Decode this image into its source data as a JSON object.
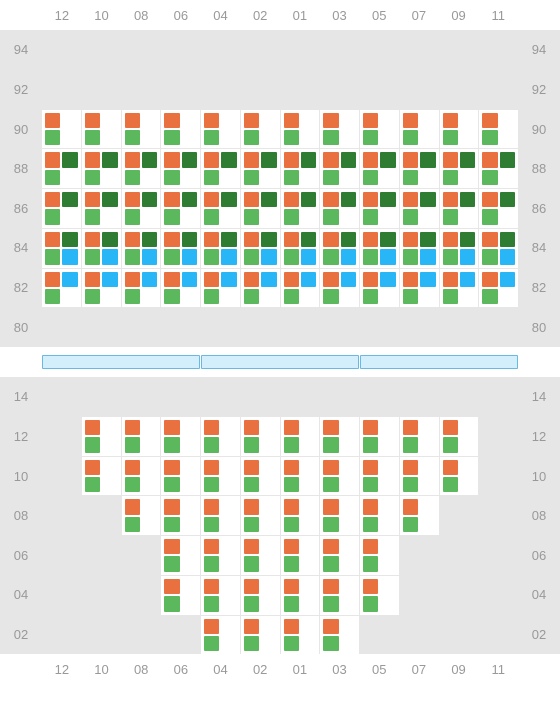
{
  "colors": {
    "orange": "#e8713f",
    "green": "#5cb85c",
    "darkgreen": "#2e7d32",
    "blue": "#29b6f6",
    "none": "transparent",
    "grey_bg": "#e6e6e6",
    "white_bg": "#ffffff",
    "label": "#999999",
    "sep_fill": "#d4effc",
    "sep_border": "#6bb8e0"
  },
  "columns": [
    "12",
    "10",
    "08",
    "06",
    "04",
    "02",
    "01",
    "03",
    "05",
    "07",
    "09",
    "11"
  ],
  "top_section": {
    "row_labels": [
      "94",
      "92",
      "90",
      "88",
      "86",
      "84",
      "82",
      "80"
    ],
    "cells": [
      [
        null,
        null,
        null,
        null,
        null,
        null,
        null,
        null,
        null,
        null,
        null,
        null
      ],
      [
        null,
        null,
        null,
        null,
        null,
        null,
        null,
        null,
        null,
        null,
        null,
        null
      ],
      [
        [
          "orange",
          "none",
          "green",
          "none"
        ],
        [
          "orange",
          "none",
          "green",
          "none"
        ],
        [
          "orange",
          "none",
          "green",
          "none"
        ],
        [
          "orange",
          "none",
          "green",
          "none"
        ],
        [
          "orange",
          "none",
          "green",
          "none"
        ],
        [
          "orange",
          "none",
          "green",
          "none"
        ],
        [
          "orange",
          "none",
          "green",
          "none"
        ],
        [
          "orange",
          "none",
          "green",
          "none"
        ],
        [
          "orange",
          "none",
          "green",
          "none"
        ],
        [
          "orange",
          "none",
          "green",
          "none"
        ],
        [
          "orange",
          "none",
          "green",
          "none"
        ],
        [
          "orange",
          "none",
          "green",
          "none"
        ]
      ],
      [
        [
          "orange",
          "darkgreen",
          "green",
          "none"
        ],
        [
          "orange",
          "darkgreen",
          "green",
          "none"
        ],
        [
          "orange",
          "darkgreen",
          "green",
          "none"
        ],
        [
          "orange",
          "darkgreen",
          "green",
          "none"
        ],
        [
          "orange",
          "darkgreen",
          "green",
          "none"
        ],
        [
          "orange",
          "darkgreen",
          "green",
          "none"
        ],
        [
          "orange",
          "darkgreen",
          "green",
          "none"
        ],
        [
          "orange",
          "darkgreen",
          "green",
          "none"
        ],
        [
          "orange",
          "darkgreen",
          "green",
          "none"
        ],
        [
          "orange",
          "darkgreen",
          "green",
          "none"
        ],
        [
          "orange",
          "darkgreen",
          "green",
          "none"
        ],
        [
          "orange",
          "darkgreen",
          "green",
          "none"
        ]
      ],
      [
        [
          "orange",
          "darkgreen",
          "green",
          "none"
        ],
        [
          "orange",
          "darkgreen",
          "green",
          "none"
        ],
        [
          "orange",
          "darkgreen",
          "green",
          "none"
        ],
        [
          "orange",
          "darkgreen",
          "green",
          "none"
        ],
        [
          "orange",
          "darkgreen",
          "green",
          "none"
        ],
        [
          "orange",
          "darkgreen",
          "green",
          "none"
        ],
        [
          "orange",
          "darkgreen",
          "green",
          "none"
        ],
        [
          "orange",
          "darkgreen",
          "green",
          "none"
        ],
        [
          "orange",
          "darkgreen",
          "green",
          "none"
        ],
        [
          "orange",
          "darkgreen",
          "green",
          "none"
        ],
        [
          "orange",
          "darkgreen",
          "green",
          "none"
        ],
        [
          "orange",
          "darkgreen",
          "green",
          "none"
        ]
      ],
      [
        [
          "orange",
          "darkgreen",
          "green",
          "blue"
        ],
        [
          "orange",
          "darkgreen",
          "green",
          "blue"
        ],
        [
          "orange",
          "darkgreen",
          "green",
          "blue"
        ],
        [
          "orange",
          "darkgreen",
          "green",
          "blue"
        ],
        [
          "orange",
          "darkgreen",
          "green",
          "blue"
        ],
        [
          "orange",
          "darkgreen",
          "green",
          "blue"
        ],
        [
          "orange",
          "darkgreen",
          "green",
          "blue"
        ],
        [
          "orange",
          "darkgreen",
          "green",
          "blue"
        ],
        [
          "orange",
          "darkgreen",
          "green",
          "blue"
        ],
        [
          "orange",
          "darkgreen",
          "green",
          "blue"
        ],
        [
          "orange",
          "darkgreen",
          "green",
          "blue"
        ],
        [
          "orange",
          "darkgreen",
          "green",
          "blue"
        ]
      ],
      [
        [
          "orange",
          "blue",
          "green",
          "none"
        ],
        [
          "orange",
          "blue",
          "green",
          "none"
        ],
        [
          "orange",
          "blue",
          "green",
          "none"
        ],
        [
          "orange",
          "blue",
          "green",
          "none"
        ],
        [
          "orange",
          "blue",
          "green",
          "none"
        ],
        [
          "orange",
          "blue",
          "green",
          "none"
        ],
        [
          "orange",
          "blue",
          "green",
          "none"
        ],
        [
          "orange",
          "blue",
          "green",
          "none"
        ],
        [
          "orange",
          "blue",
          "green",
          "none"
        ],
        [
          "orange",
          "blue",
          "green",
          "none"
        ],
        [
          "orange",
          "blue",
          "green",
          "none"
        ],
        [
          "orange",
          "blue",
          "green",
          "none"
        ]
      ],
      [
        null,
        null,
        null,
        null,
        null,
        null,
        null,
        null,
        null,
        null,
        null,
        null
      ]
    ]
  },
  "separator_segments": 3,
  "bottom_section": {
    "row_labels": [
      "14",
      "12",
      "10",
      "08",
      "06",
      "04",
      "02"
    ],
    "cells": [
      [
        null,
        null,
        null,
        null,
        null,
        null,
        null,
        null,
        null,
        null,
        null,
        null
      ],
      [
        null,
        [
          "orange",
          "none",
          "green",
          "none"
        ],
        [
          "orange",
          "none",
          "green",
          "none"
        ],
        [
          "orange",
          "none",
          "green",
          "none"
        ],
        [
          "orange",
          "none",
          "green",
          "none"
        ],
        [
          "orange",
          "none",
          "green",
          "none"
        ],
        [
          "orange",
          "none",
          "green",
          "none"
        ],
        [
          "orange",
          "none",
          "green",
          "none"
        ],
        [
          "orange",
          "none",
          "green",
          "none"
        ],
        [
          "orange",
          "none",
          "green",
          "none"
        ],
        [
          "orange",
          "none",
          "green",
          "none"
        ],
        null
      ],
      [
        null,
        [
          "orange",
          "none",
          "green",
          "none"
        ],
        [
          "orange",
          "none",
          "green",
          "none"
        ],
        [
          "orange",
          "none",
          "green",
          "none"
        ],
        [
          "orange",
          "none",
          "green",
          "none"
        ],
        [
          "orange",
          "none",
          "green",
          "none"
        ],
        [
          "orange",
          "none",
          "green",
          "none"
        ],
        [
          "orange",
          "none",
          "green",
          "none"
        ],
        [
          "orange",
          "none",
          "green",
          "none"
        ],
        [
          "orange",
          "none",
          "green",
          "none"
        ],
        [
          "orange",
          "none",
          "green",
          "none"
        ],
        null
      ],
      [
        null,
        null,
        [
          "orange",
          "none",
          "green",
          "none"
        ],
        [
          "orange",
          "none",
          "green",
          "none"
        ],
        [
          "orange",
          "none",
          "green",
          "none"
        ],
        [
          "orange",
          "none",
          "green",
          "none"
        ],
        [
          "orange",
          "none",
          "green",
          "none"
        ],
        [
          "orange",
          "none",
          "green",
          "none"
        ],
        [
          "orange",
          "none",
          "green",
          "none"
        ],
        [
          "orange",
          "none",
          "green",
          "none"
        ],
        null,
        null
      ],
      [
        null,
        null,
        null,
        [
          "orange",
          "none",
          "green",
          "none"
        ],
        [
          "orange",
          "none",
          "green",
          "none"
        ],
        [
          "orange",
          "none",
          "green",
          "none"
        ],
        [
          "orange",
          "none",
          "green",
          "none"
        ],
        [
          "orange",
          "none",
          "green",
          "none"
        ],
        [
          "orange",
          "none",
          "green",
          "none"
        ],
        null,
        null,
        null
      ],
      [
        null,
        null,
        null,
        [
          "orange",
          "none",
          "green",
          "none"
        ],
        [
          "orange",
          "none",
          "green",
          "none"
        ],
        [
          "orange",
          "none",
          "green",
          "none"
        ],
        [
          "orange",
          "none",
          "green",
          "none"
        ],
        [
          "orange",
          "none",
          "green",
          "none"
        ],
        [
          "orange",
          "none",
          "green",
          "none"
        ],
        null,
        null,
        null
      ],
      [
        null,
        null,
        null,
        null,
        [
          "orange",
          "none",
          "green",
          "none"
        ],
        [
          "orange",
          "none",
          "green",
          "none"
        ],
        [
          "orange",
          "none",
          "green",
          "none"
        ],
        [
          "orange",
          "none",
          "green",
          "none"
        ],
        null,
        null,
        null,
        null
      ]
    ]
  }
}
